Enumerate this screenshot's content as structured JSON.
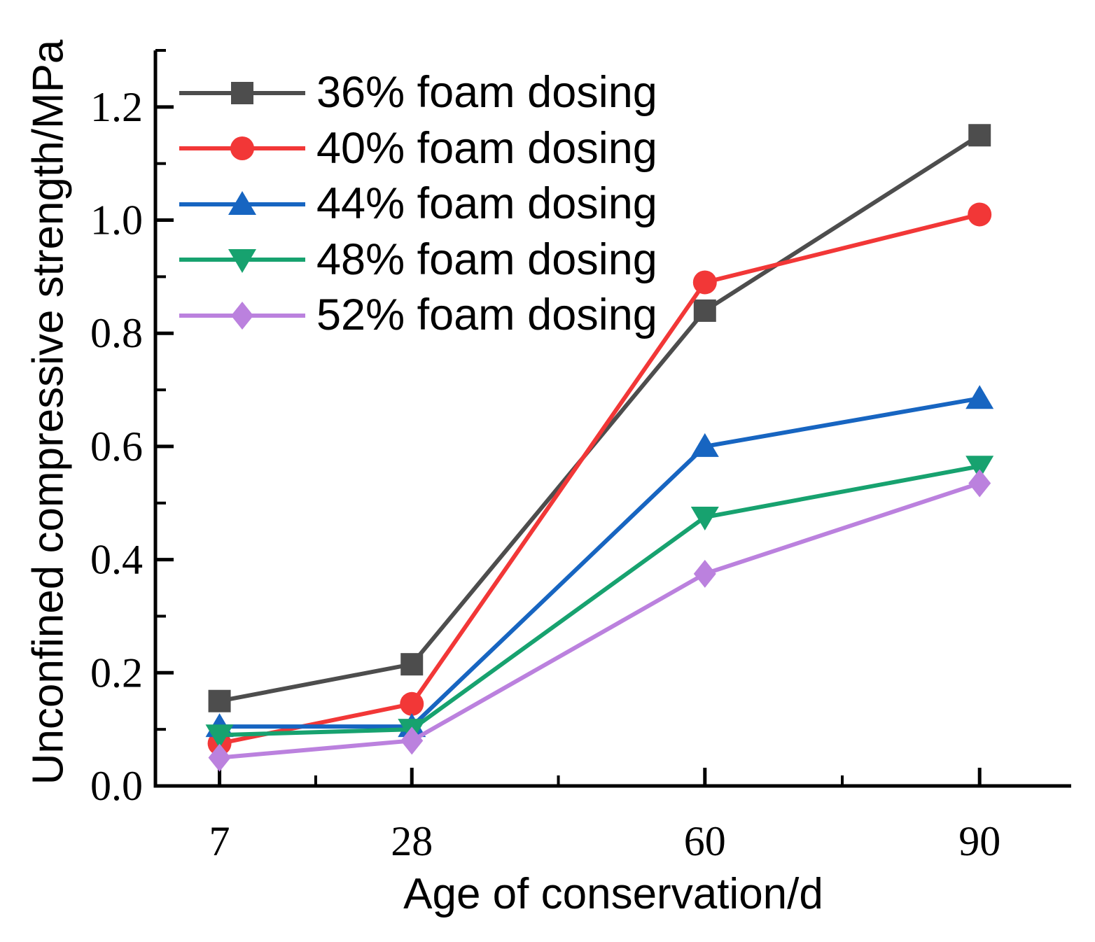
{
  "figure": {
    "background": "#ffffff",
    "axis_color": "#000000"
  },
  "chart_data": {
    "type": "line",
    "title": "",
    "xlabel": "Age of conservation/d",
    "ylabel": "Unconfined compressive strength/MPa",
    "x": [
      7,
      28,
      60,
      90
    ],
    "x_tick_labels": [
      "7",
      "28",
      "60",
      "90"
    ],
    "x_minor_ticks": [
      17.5,
      44,
      75
    ],
    "xlim": [
      0,
      100
    ],
    "y_ticks": [
      0.0,
      0.2,
      0.4,
      0.6,
      0.8,
      1.0,
      1.2
    ],
    "y_tick_labels": [
      "0.0",
      "0.2",
      "0.4",
      "0.6",
      "0.8",
      "1.0",
      "1.2"
    ],
    "y_minor_ticks": [
      0.1,
      0.3,
      0.5,
      0.7,
      0.9,
      1.1,
      1.3
    ],
    "ylim": [
      0,
      1.3
    ],
    "grid": false,
    "legend_position": "top-left-inside",
    "series": [
      {
        "name": "36% foam dosing",
        "marker": "square",
        "color": "#4d4d4d",
        "values": [
          0.15,
          0.215,
          0.84,
          1.15
        ]
      },
      {
        "name": "40% foam dosing",
        "marker": "circle",
        "color": "#f23737",
        "values": [
          0.075,
          0.145,
          0.89,
          1.01
        ]
      },
      {
        "name": "44% foam dosing",
        "marker": "triangle-up",
        "color": "#1765c1",
        "values": [
          0.105,
          0.105,
          0.6,
          0.685
        ]
      },
      {
        "name": "48% foam dosing",
        "marker": "triangle-down",
        "color": "#17a26f",
        "values": [
          0.09,
          0.1,
          0.475,
          0.565
        ]
      },
      {
        "name": "52% foam dosing",
        "marker": "diamond",
        "color": "#bb81de",
        "values": [
          0.05,
          0.08,
          0.375,
          0.535
        ]
      }
    ]
  }
}
